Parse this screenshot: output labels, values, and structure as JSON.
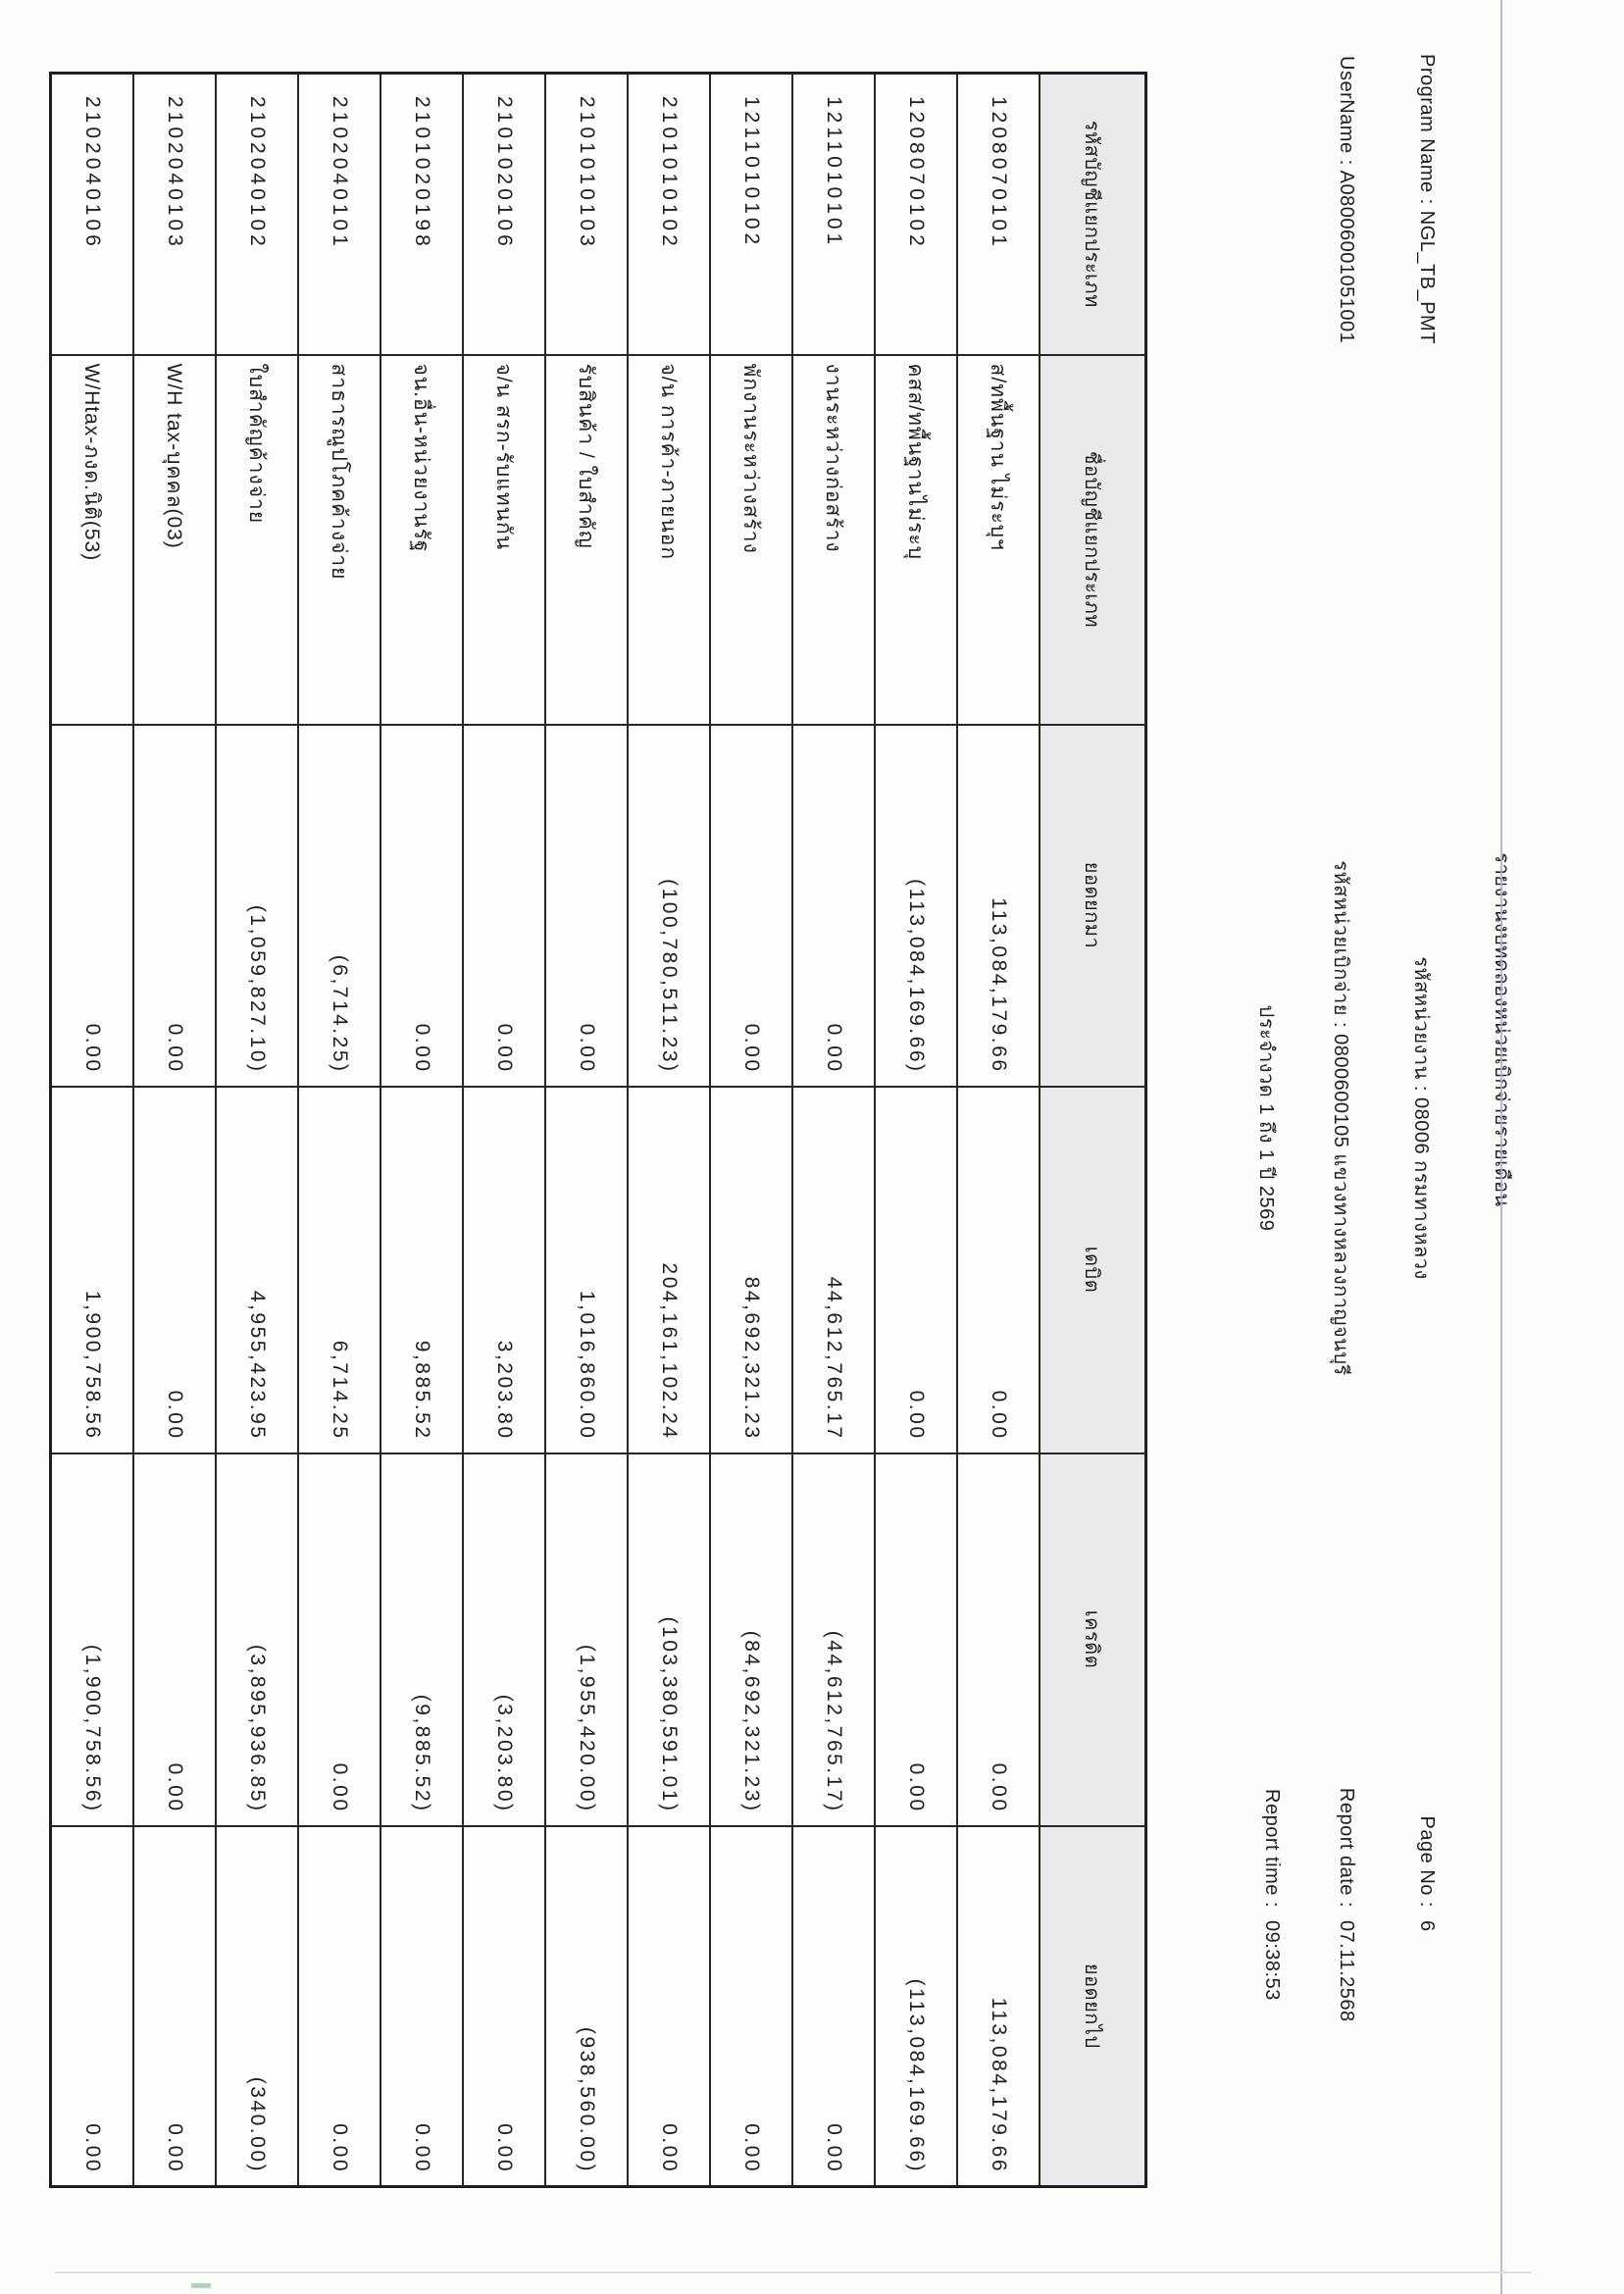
{
  "page": {
    "title": "รายงานงบทดลองหน่วยเบิกจ่ายรายเดือน",
    "program_name_label": "Program Name :",
    "program_name_value": "NGL_TB_PMT",
    "username_label": "UserName :",
    "username_value": "A08006001051001",
    "agency_line": "รหัสหน่วยงาน : 08006 กรมทางหลวง",
    "disbursement_unit_line": "รหัสหน่วยเบิกจ่าย : 0800600105 แขวงทางหลวงกาญจนบุรี",
    "period_line": "ประจำงวด 1 ถึง 1 ปี 2569",
    "page_no_label": "Page No :",
    "page_no_value": "6",
    "report_date_label": "Report date :",
    "report_date_value": "07.11.2568",
    "report_time_label": "Report time :",
    "report_time_value": "09:38:53"
  },
  "table": {
    "headers": [
      "รหัสบัญชีแยกประเภท",
      "ชื่อบัญชีแยกประเภท",
      "ยอดยกมา",
      "เดบิต",
      "เครดิต",
      "ยอดยกไป"
    ],
    "rows": [
      [
        "1208070101",
        "ส/ทพื้นฐาน ไม่ระบุฯ",
        "113,084,179.66",
        "0.00",
        "0.00",
        "113,084,179.66"
      ],
      [
        "1208070102",
        "คสส/ทพื้นฐานไม่ระบุ",
        "(113,084,169.66)",
        "0.00",
        "0.00",
        "(113,084,169.66)"
      ],
      [
        "1211010101",
        "งานระหว่างก่อสร้าง",
        "0.00",
        "44,612,765.17",
        "(44,612,765.17)",
        "0.00"
      ],
      [
        "1211010102",
        "พักงานระหว่างสร้าง",
        "0.00",
        "84,692,321.23",
        "(84,692,321.23)",
        "0.00"
      ],
      [
        "2101010102",
        "จ/น การค้า-ภายนอก",
        "(100,780,511.23)",
        "204,161,102.24",
        "(103,380,591.01)",
        "0.00"
      ],
      [
        "2101010103",
        "รับสินค้า / ใบสำคัญ",
        "0.00",
        "1,016,860.00",
        "(1,955,420.00)",
        "(938,560.00)"
      ],
      [
        "2101020106",
        "จ/น สรก-รับแทนกัน",
        "0.00",
        "3,203.80",
        "(3,203.80)",
        "0.00"
      ],
      [
        "2101020198",
        "จน.อื่น-หน่วยงานรัฐ",
        "0.00",
        "9,885.52",
        "(9,885.52)",
        "0.00"
      ],
      [
        "2102040101",
        "สาธารณูปโภคค้างจ่าย",
        "(6,714.25)",
        "6,714.25",
        "0.00",
        "0.00"
      ],
      [
        "2102040102",
        "ใบสำคัญค้างจ่าย",
        "(1,059,827.10)",
        "4,955,423.95",
        "(3,895,936.85)",
        "(340.00)"
      ],
      [
        "2102040103",
        "W/H tax-บุคคล(03)",
        "0.00",
        "0.00",
        "0.00",
        "0.00"
      ],
      [
        "2102040106",
        "W/Htax-ภงด.นิติ(53)",
        "0.00",
        "1,900,758.56",
        "(1,900,758.56)",
        "0.00"
      ]
    ]
  }
}
